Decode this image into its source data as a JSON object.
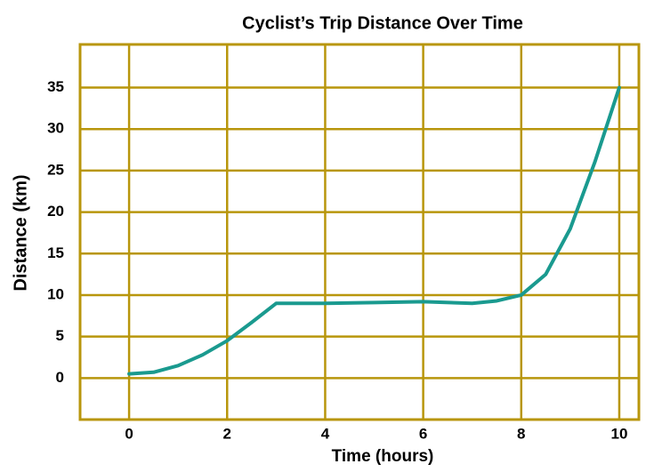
{
  "chart_data": {
    "type": "line",
    "title": "Cyclist’s Trip Distance Over Time",
    "x_label": "Time (hours)",
    "y_label": "Distance (km)",
    "x": [
      0,
      0.5,
      1,
      1.5,
      2,
      2.5,
      3,
      4,
      5,
      6,
      7,
      7.5,
      8,
      8.5,
      9,
      9.5,
      10
    ],
    "series": [
      {
        "color": "#1a9a8f",
        "values": [
          0.5,
          0.7,
          1.5,
          2.8,
          4.5,
          6.7,
          9,
          9,
          9.1,
          9.2,
          9,
          9.3,
          10,
          12.5,
          18,
          26,
          35
        ]
      }
    ],
    "xlim": [
      -1,
      10.4
    ],
    "xticks": [
      0,
      2,
      4,
      6,
      8,
      10
    ],
    "ylim": [
      -5,
      40.2
    ],
    "yticks": [
      0,
      5,
      10,
      15,
      20,
      25,
      30,
      35
    ],
    "grid": true,
    "grid_color": "#b8960c"
  }
}
